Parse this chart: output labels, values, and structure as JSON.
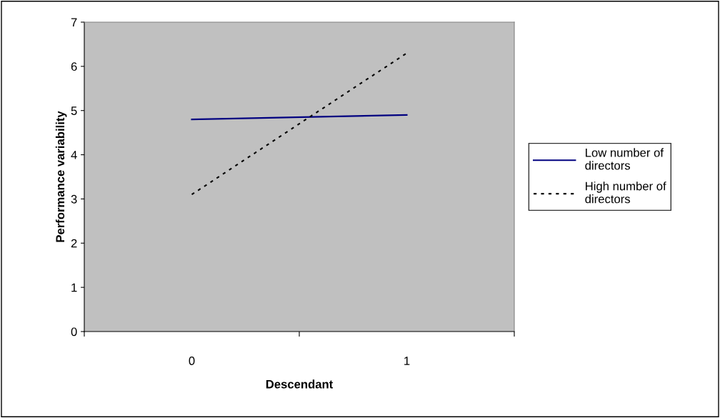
{
  "chart_data": {
    "type": "line",
    "xlabel": "Descendant",
    "ylabel": "Performance variability",
    "categories": [
      "0",
      "1"
    ],
    "series": [
      {
        "name": "Low number of directors",
        "color": "#000080",
        "values": [
          4.8,
          4.9
        ],
        "line_style": "solid"
      },
      {
        "name": "High number of directors",
        "color": "#000000",
        "values": [
          3.1,
          6.3
        ],
        "line_style": "dotted"
      }
    ],
    "ylim": [
      0,
      7
    ],
    "yticks": [
      0,
      1,
      2,
      3,
      4,
      5,
      6,
      7
    ],
    "grid": false,
    "legend": "right",
    "marker": "none"
  }
}
